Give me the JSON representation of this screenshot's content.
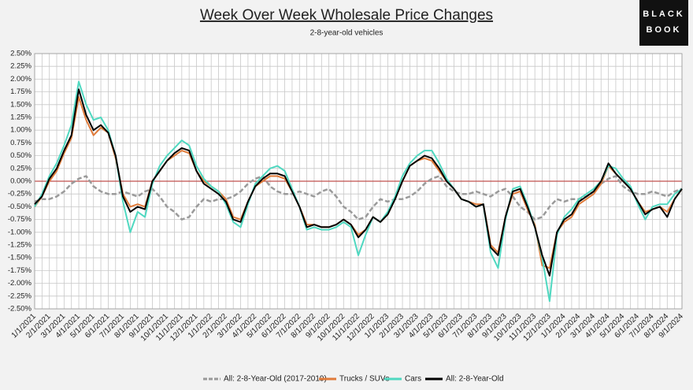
{
  "chart_data": {
    "type": "line",
    "title": "Week Over Week Wholesale Price Changes",
    "subtitle": "2-8-year-old vehicles",
    "logo": [
      "BLACK",
      "BOOK"
    ],
    "categories": [
      "1/1/2021",
      null,
      "2/1/2021",
      null,
      "3/1/2021",
      null,
      "4/1/2021",
      null,
      "5/1/2021",
      null,
      "6/1/2021",
      null,
      "7/1/2021",
      null,
      "8/1/2021",
      null,
      "9/1/2021",
      null,
      "10/1/2021",
      null,
      "11/1/2021",
      null,
      "12/1/2021",
      null,
      "1/1/2022",
      null,
      "2/1/2022",
      null,
      "3/1/2022",
      null,
      "4/1/2022",
      null,
      "5/1/2022",
      null,
      "6/1/2022",
      null,
      "7/1/2022",
      null,
      "8/1/2022",
      null,
      "9/1/2022",
      null,
      "10/1/2022",
      null,
      "11/1/2022",
      null,
      "12/1/2022",
      null,
      "1/1/2023",
      null,
      "2/1/2023",
      null,
      "3/1/2023",
      null,
      "4/1/2023",
      null,
      "5/1/2023",
      null,
      "6/1/2023",
      null,
      "7/1/2023",
      null,
      "8/1/2023",
      null,
      "9/1/2023",
      null,
      "10/1/2023",
      null,
      "11/1/2023",
      null,
      "12/1/2023",
      null,
      "1/1/2024",
      null,
      "2/1/2024",
      null,
      "3/1/2024",
      null,
      "4/1/2024",
      null,
      "5/1/2024",
      null,
      "6/1/2024",
      null,
      "7/1/2024",
      null,
      "8/1/2024",
      null,
      "9/1/2024"
    ],
    "series": [
      {
        "name": "All: 2-8-Year-Old (2017-2019)",
        "color": "#9a9a9a",
        "dashed": true,
        "values": [
          -0.4,
          -0.35,
          -0.35,
          -0.3,
          -0.2,
          -0.05,
          0.05,
          0.1,
          -0.1,
          -0.2,
          -0.25,
          -0.25,
          -0.2,
          -0.25,
          -0.3,
          -0.2,
          -0.15,
          -0.3,
          -0.5,
          -0.6,
          -0.75,
          -0.7,
          -0.5,
          -0.35,
          -0.4,
          -0.35,
          -0.35,
          -0.3,
          -0.2,
          -0.05,
          0.05,
          0.1,
          -0.1,
          -0.2,
          -0.25,
          -0.25,
          -0.2,
          -0.25,
          -0.3,
          -0.2,
          -0.15,
          -0.3,
          -0.5,
          -0.6,
          -0.75,
          -0.7,
          -0.5,
          -0.35,
          -0.4,
          -0.35,
          -0.35,
          -0.3,
          -0.2,
          -0.05,
          0.05,
          0.1,
          -0.1,
          -0.2,
          -0.25,
          -0.25,
          -0.2,
          -0.25,
          -0.3,
          -0.2,
          -0.15,
          -0.3,
          -0.5,
          -0.6,
          -0.75,
          -0.7,
          -0.5,
          -0.35,
          -0.4,
          -0.35,
          -0.35,
          -0.3,
          -0.2,
          -0.05,
          0.05,
          0.1,
          -0.1,
          -0.2,
          -0.25,
          -0.25,
          -0.2,
          -0.25,
          -0.3,
          -0.2,
          -0.15
        ]
      },
      {
        "name": "Trucks / SUVs",
        "color": "#e07b3a",
        "dashed": false,
        "values": [
          -0.5,
          -0.3,
          0.0,
          0.2,
          0.55,
          0.85,
          1.65,
          1.2,
          0.9,
          1.05,
          0.95,
          0.45,
          -0.25,
          -0.5,
          -0.45,
          -0.5,
          0.0,
          0.2,
          0.4,
          0.5,
          0.6,
          0.55,
          0.2,
          0.0,
          -0.1,
          -0.2,
          -0.35,
          -0.7,
          -0.75,
          -0.4,
          -0.1,
          0.0,
          0.1,
          0.1,
          0.05,
          -0.2,
          -0.5,
          -0.85,
          -0.85,
          -0.9,
          -0.9,
          -0.85,
          -0.75,
          -0.85,
          -1.05,
          -0.95,
          -0.7,
          -0.8,
          -0.65,
          -0.35,
          0.0,
          0.3,
          0.4,
          0.45,
          0.4,
          0.2,
          0.0,
          -0.15,
          -0.35,
          -0.4,
          -0.45,
          -0.45,
          -1.25,
          -1.4,
          -0.7,
          -0.25,
          -0.2,
          -0.55,
          -0.85,
          -1.65,
          -1.7,
          -1.0,
          -0.8,
          -0.7,
          -0.45,
          -0.35,
          -0.25,
          -0.05,
          0.3,
          0.15,
          0.0,
          -0.15,
          -0.4,
          -0.6,
          -0.55,
          -0.5,
          -0.6,
          -0.35,
          -0.15
        ]
      },
      {
        "name": "Cars",
        "color": "#4fd8c0",
        "dashed": false,
        "values": [
          -0.5,
          -0.25,
          0.1,
          0.35,
          0.7,
          1.1,
          1.95,
          1.5,
          1.2,
          1.25,
          1.0,
          0.5,
          -0.4,
          -1.0,
          -0.6,
          -0.7,
          -0.05,
          0.3,
          0.5,
          0.65,
          0.8,
          0.7,
          0.3,
          0.05,
          -0.1,
          -0.2,
          -0.45,
          -0.8,
          -0.9,
          -0.45,
          -0.05,
          0.1,
          0.25,
          0.3,
          0.2,
          -0.15,
          -0.5,
          -0.95,
          -0.9,
          -0.95,
          -0.95,
          -0.9,
          -0.8,
          -0.9,
          -1.45,
          -1.05,
          -0.7,
          -0.8,
          -0.6,
          -0.3,
          0.1,
          0.35,
          0.5,
          0.6,
          0.6,
          0.35,
          0.05,
          -0.15,
          -0.35,
          -0.4,
          -0.5,
          -0.45,
          -1.4,
          -1.7,
          -0.75,
          -0.15,
          -0.1,
          -0.45,
          -0.9,
          -1.5,
          -2.35,
          -1.05,
          -0.7,
          -0.55,
          -0.35,
          -0.25,
          -0.15,
          0.0,
          0.3,
          0.25,
          0.05,
          -0.1,
          -0.45,
          -0.75,
          -0.5,
          -0.45,
          -0.45,
          -0.25,
          -0.15
        ]
      },
      {
        "name": "All: 2-8-Year-Old",
        "color": "#000000",
        "dashed": false,
        "values": [
          -0.45,
          -0.3,
          0.05,
          0.25,
          0.6,
          0.9,
          1.8,
          1.3,
          1.0,
          1.1,
          0.95,
          0.5,
          -0.3,
          -0.6,
          -0.5,
          -0.55,
          0.0,
          0.2,
          0.4,
          0.55,
          0.65,
          0.6,
          0.2,
          -0.05,
          -0.15,
          -0.25,
          -0.4,
          -0.75,
          -0.8,
          -0.4,
          -0.1,
          0.05,
          0.15,
          0.15,
          0.1,
          -0.2,
          -0.5,
          -0.9,
          -0.85,
          -0.9,
          -0.9,
          -0.85,
          -0.75,
          -0.85,
          -1.1,
          -0.95,
          -0.7,
          -0.8,
          -0.65,
          -0.35,
          0.0,
          0.3,
          0.4,
          0.5,
          0.45,
          0.25,
          0.0,
          -0.15,
          -0.35,
          -0.4,
          -0.5,
          -0.45,
          -1.3,
          -1.45,
          -0.7,
          -0.2,
          -0.15,
          -0.5,
          -0.9,
          -1.45,
          -1.85,
          -1.0,
          -0.75,
          -0.65,
          -0.4,
          -0.3,
          -0.2,
          0.0,
          0.35,
          0.15,
          0.0,
          -0.15,
          -0.4,
          -0.65,
          -0.55,
          -0.5,
          -0.7,
          -0.35,
          -0.15
        ]
      }
    ],
    "ylim": [
      -2.5,
      2.5
    ],
    "yticks": [
      {
        "value": -2.5,
        "label": "-2.50%"
      },
      {
        "value": -2.25,
        "label": "-2.25%"
      },
      {
        "value": -2.0,
        "label": "-2.00%"
      },
      {
        "value": -1.75,
        "label": "-1.75%"
      },
      {
        "value": -1.5,
        "label": "-1.50%"
      },
      {
        "value": -1.25,
        "label": "-1.25%"
      },
      {
        "value": -1.0,
        "label": "-1.00%"
      },
      {
        "value": -0.75,
        "label": "-0.75%"
      },
      {
        "value": -0.5,
        "label": "-0.50%"
      },
      {
        "value": -0.25,
        "label": "-0.25%"
      },
      {
        "value": 0,
        "label": "0.00%"
      },
      {
        "value": 0.25,
        "label": "0.25%"
      },
      {
        "value": 0.5,
        "label": "0.50%"
      },
      {
        "value": 0.75,
        "label": "0.75%"
      },
      {
        "value": 1.0,
        "label": "1.00%"
      },
      {
        "value": 1.25,
        "label": "1.25%"
      },
      {
        "value": 1.5,
        "label": "1.50%"
      },
      {
        "value": 1.75,
        "label": "1.75%"
      },
      {
        "value": 2.0,
        "label": "2.00%"
      },
      {
        "value": 2.25,
        "label": "2.25%"
      },
      {
        "value": 2.5,
        "label": "2.50%"
      }
    ],
    "grid": true,
    "zero_line_color": "#c0504d",
    "legend": "bottom"
  }
}
